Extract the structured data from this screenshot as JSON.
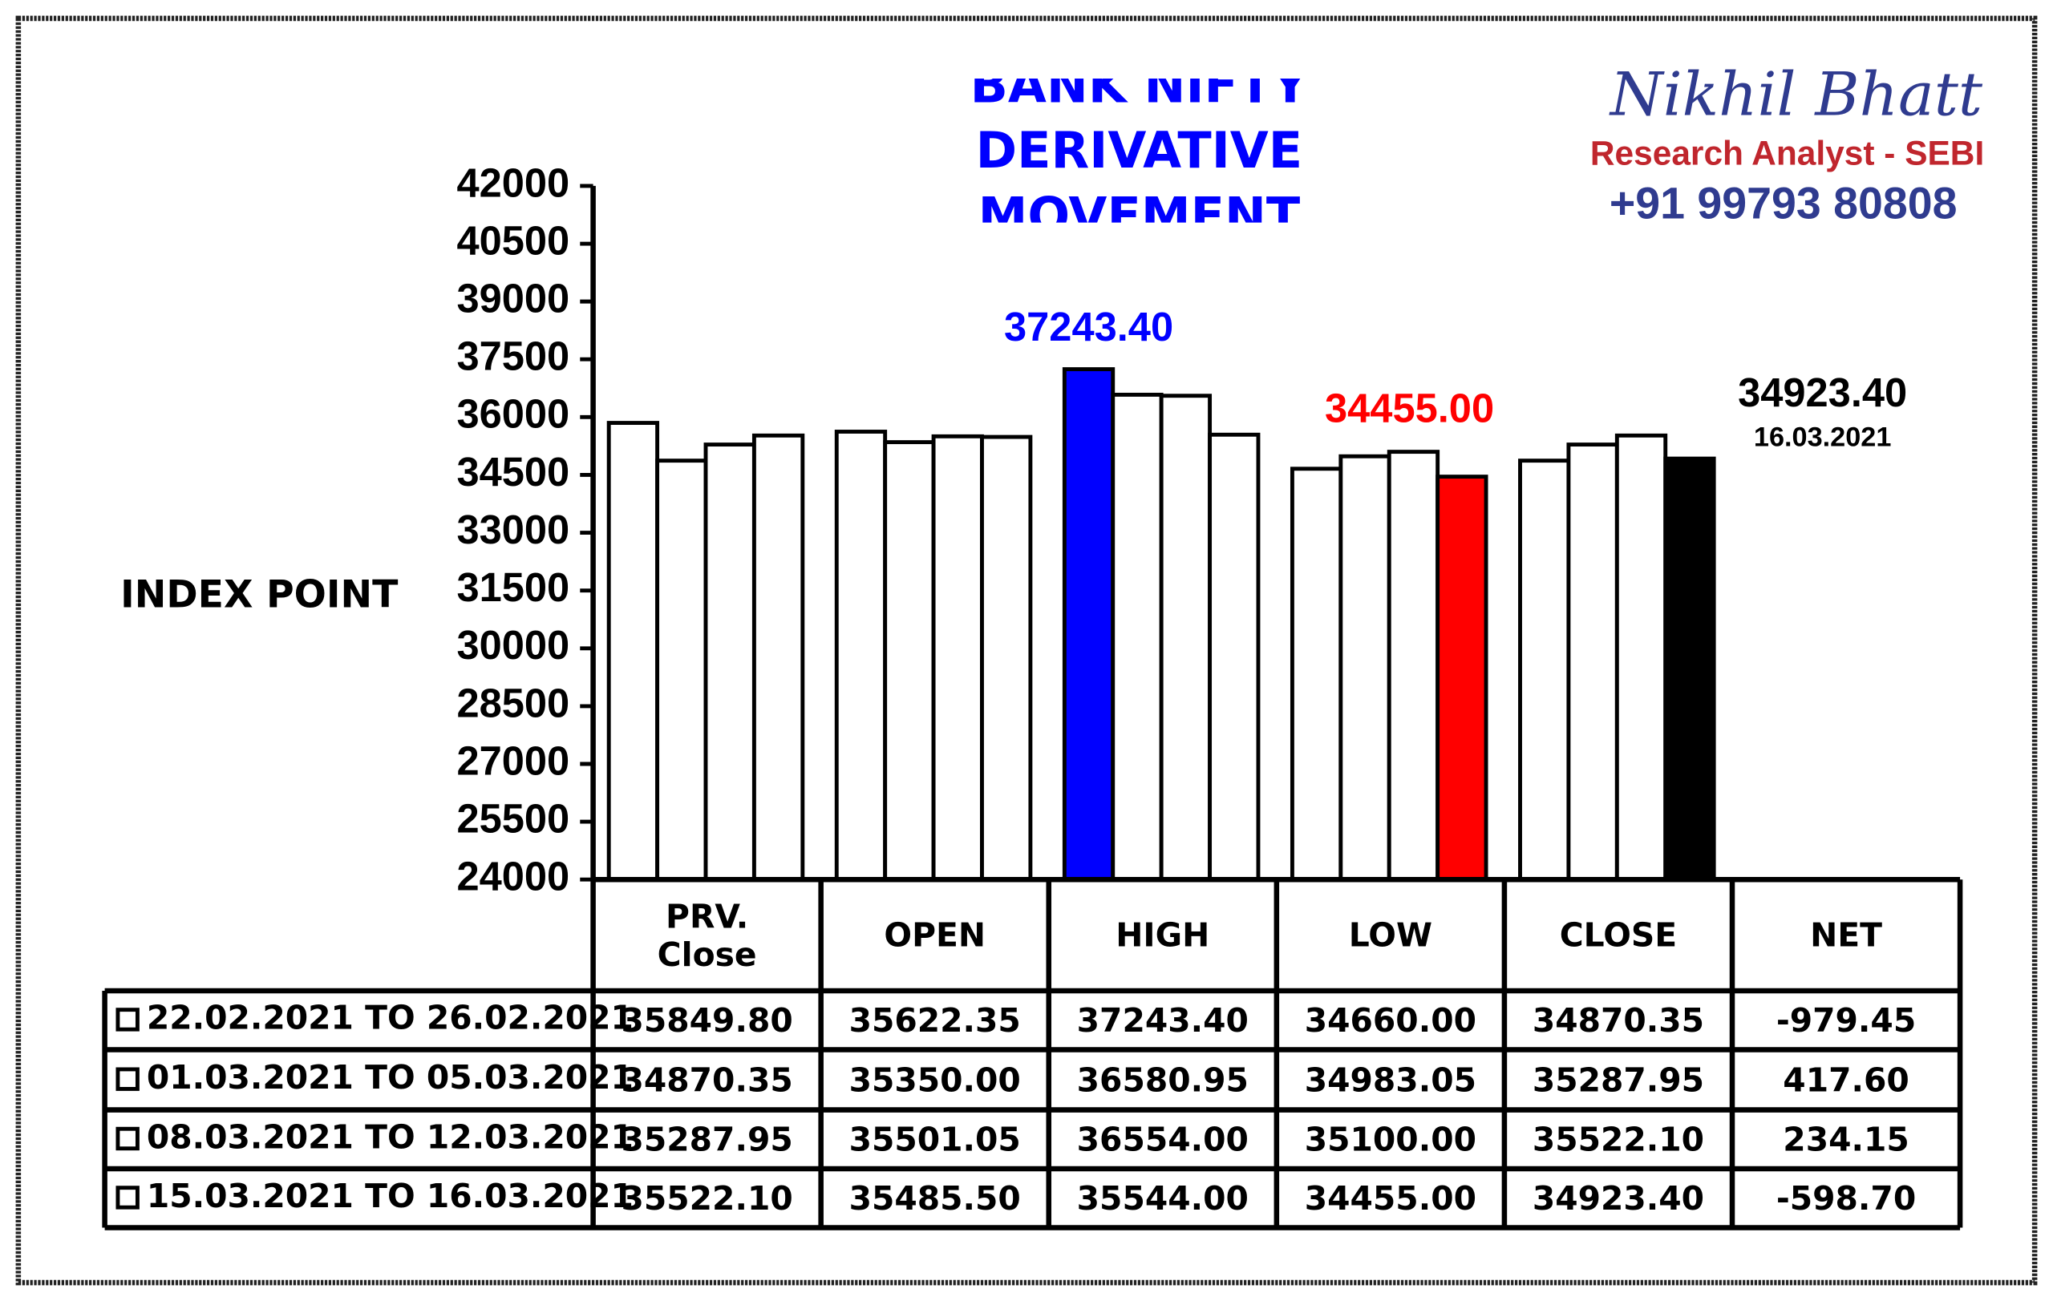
{
  "chart_data": {
    "type": "bar",
    "title": "BANK NIFTY DERIVATIVE MOVEMENT",
    "brand": {
      "name": "Nikhil Bhatt",
      "role": "Research Analyst - SEBI",
      "phone": "+91 99793 80808"
    },
    "y_label": "INDEX POINT",
    "categories": [
      "PRV. Close",
      "OPEN",
      "HIGH",
      "LOW",
      "CLOSE",
      "NET"
    ],
    "series": [
      {
        "name": "22.02.2021 TO 26.02.2021",
        "color": "#ffffff",
        "values": [
          35849.8,
          35622.35,
          37243.4,
          34660,
          34870.35,
          -979.45
        ],
        "value_labels": [
          "35849.80",
          "35622.35",
          "37243.40",
          "34660.00",
          "34870.35",
          "-979.45"
        ]
      },
      {
        "name": "01.03.2021 TO 05.03.2021",
        "color": "#ffffff",
        "values": [
          34870.35,
          35350,
          36580.95,
          34983.05,
          35287.95,
          417.6
        ],
        "value_labels": [
          "34870.35",
          "35350.00",
          "36580.95",
          "34983.05",
          "35287.95",
          "417.60"
        ]
      },
      {
        "name": "08.03.2021 TO 12.03.2021",
        "color": "#ffffff",
        "values": [
          35287.95,
          35501.05,
          36554,
          35100,
          35522.1,
          234.15
        ],
        "value_labels": [
          "35287.95",
          "35501.05",
          "36554.00",
          "35100.00",
          "35522.10",
          "234.15"
        ]
      },
      {
        "name": "15.03.2021 TO 16.03.2021",
        "color": "#ffffff",
        "values": [
          35522.1,
          35485.5,
          35544,
          34455,
          34923.4,
          -598.7
        ],
        "value_labels": [
          "35522.10",
          "35485.50",
          "35544.00",
          "34455.00",
          "34923.40",
          "-598.70"
        ]
      }
    ],
    "highlights": [
      {
        "series": 0,
        "category": 2,
        "color": "#0000ff"
      },
      {
        "series": 3,
        "category": 3,
        "color": "#ff0000"
      },
      {
        "series": 3,
        "category": 4,
        "color": "#000000",
        "note": "16.03.2021"
      }
    ],
    "ylim": [
      24000,
      42000
    ],
    "yticks": [
      24000,
      25500,
      27000,
      28500,
      30000,
      31500,
      33000,
      34500,
      36000,
      37500,
      39000,
      40500,
      42000
    ]
  }
}
